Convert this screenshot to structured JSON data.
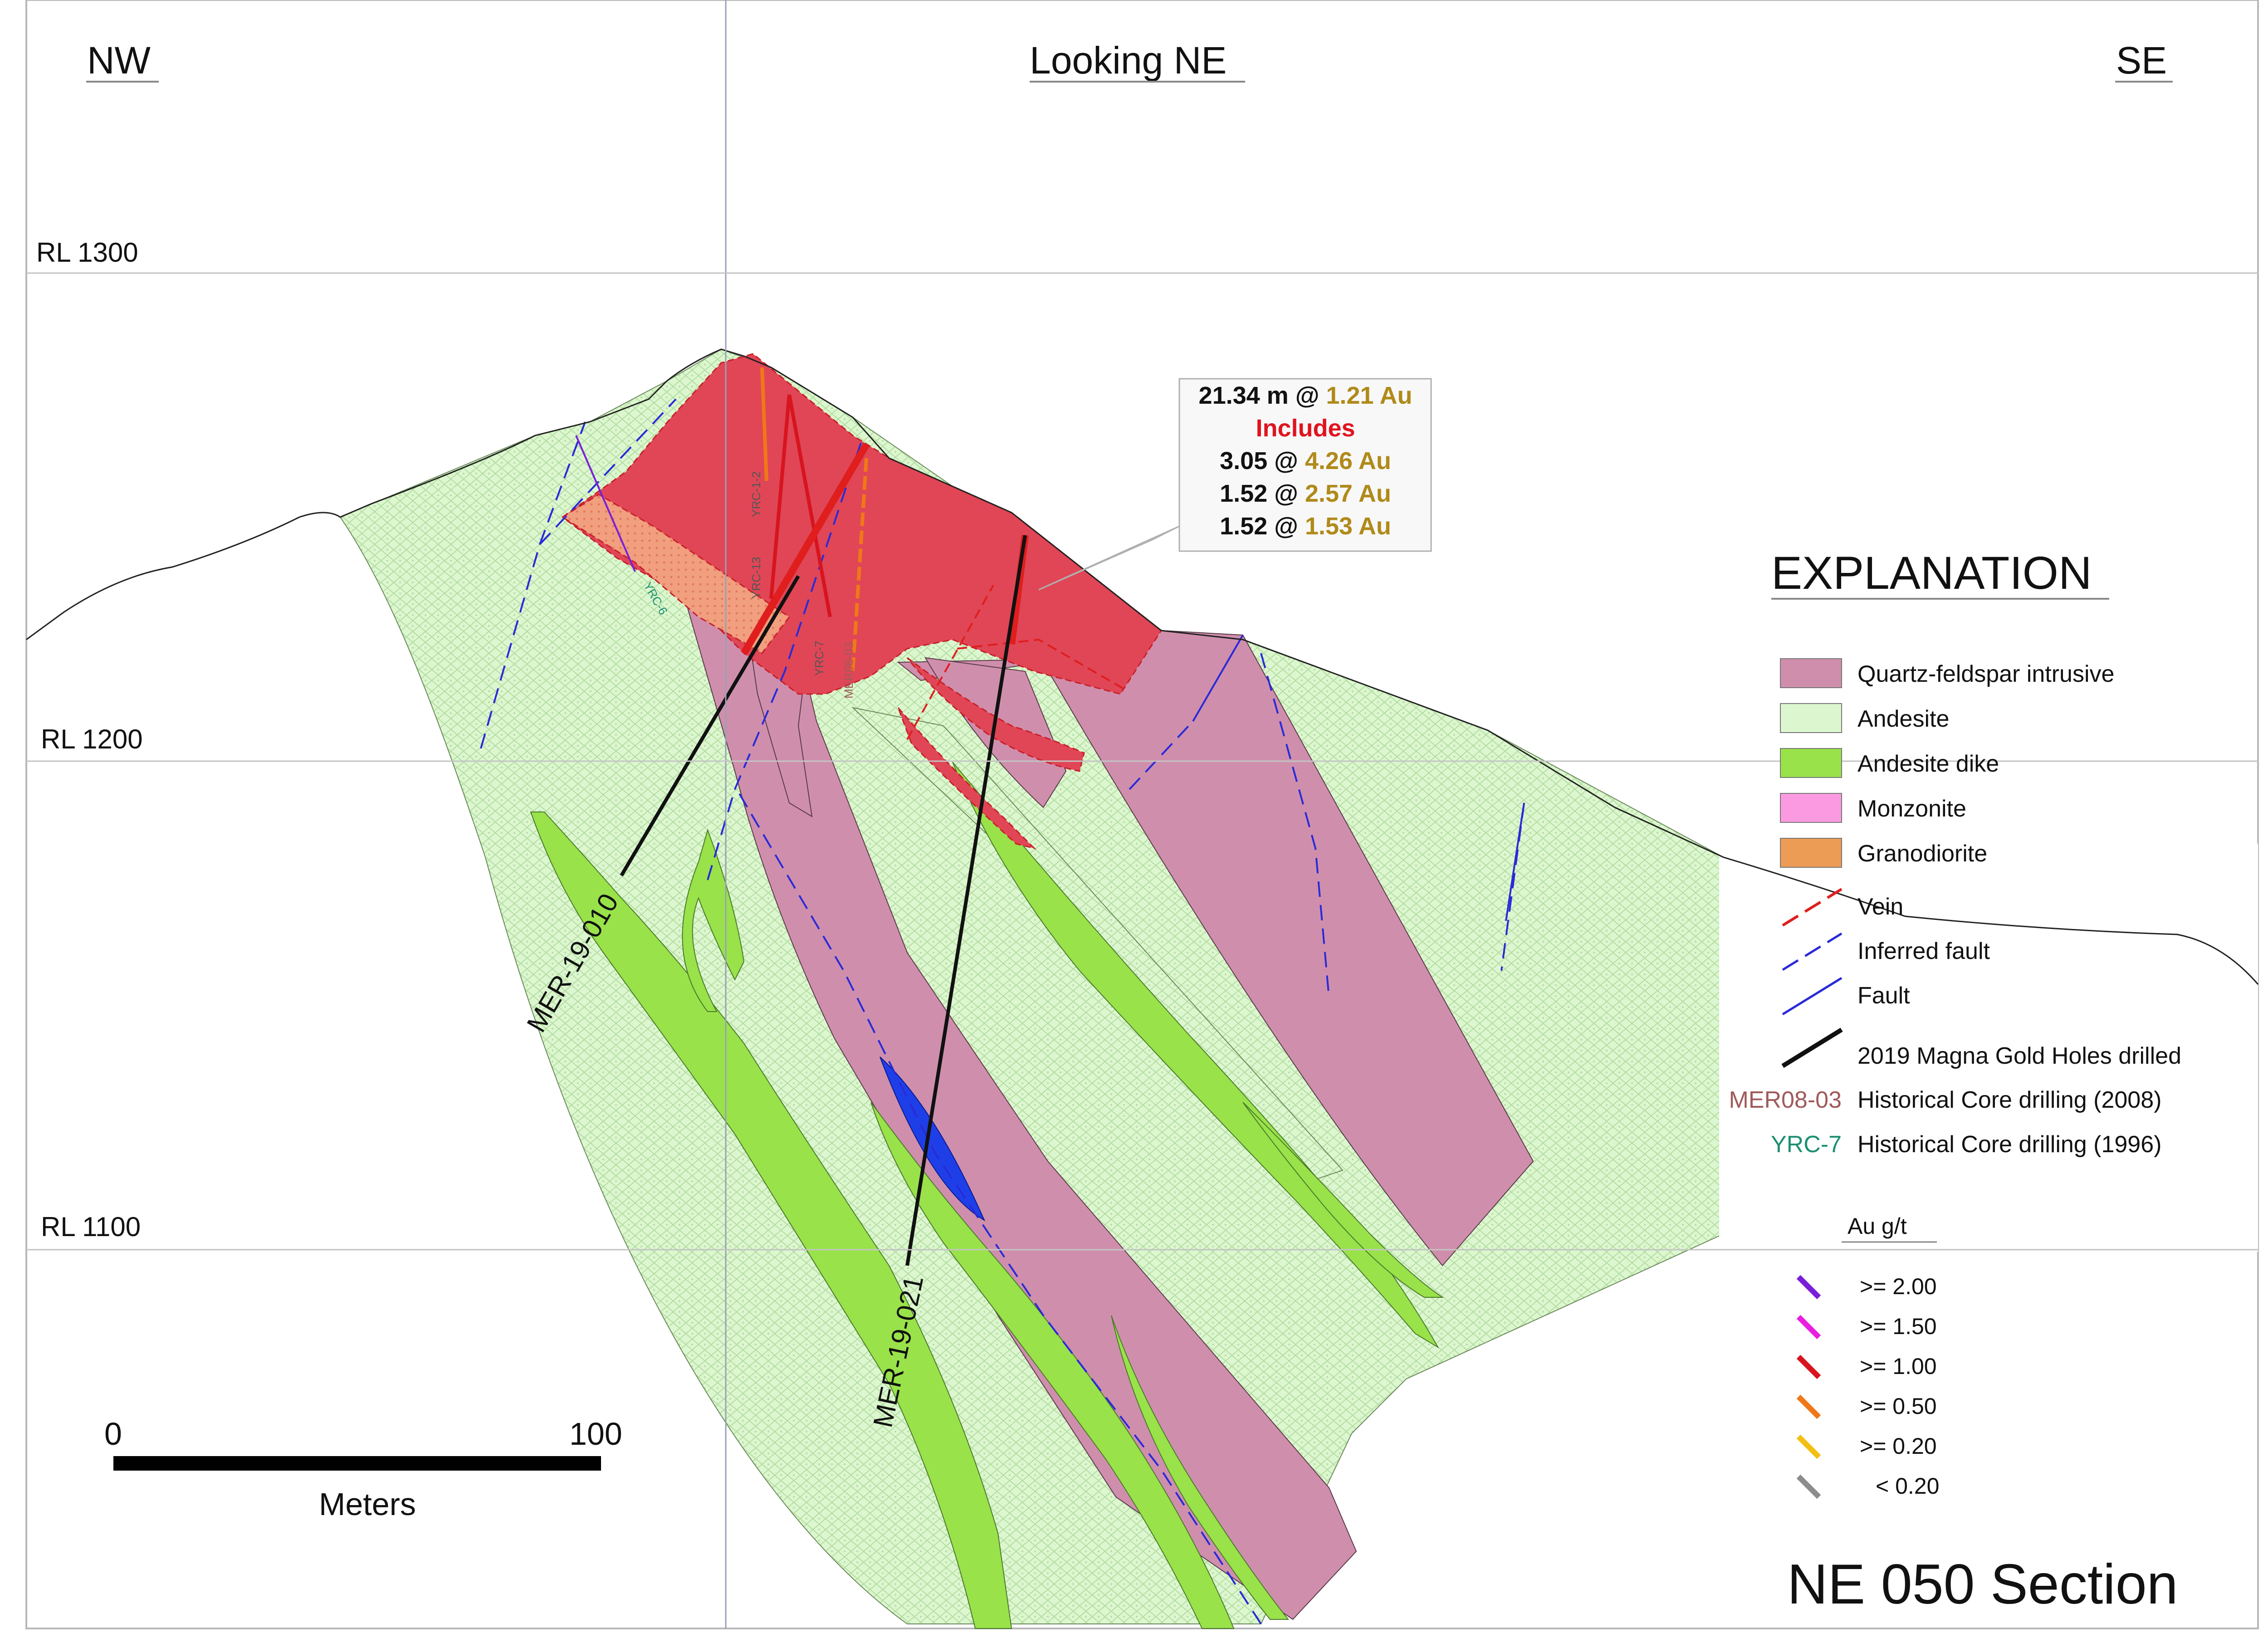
{
  "header": {
    "left": "NW",
    "center": "Looking NE",
    "right": "SE"
  },
  "elevations": [
    "RL 1300",
    "RL 1200",
    "RL 1100"
  ],
  "holes": {
    "mer19_010": "MER-19-010",
    "mer19_021": "MER-19-021",
    "yrc_1_2": "YRC-1-2",
    "yrc_13": "YRC-13",
    "yrc_7": "YRC-7",
    "mer08_03": "MER08-03",
    "yrc_6": "YRC-6"
  },
  "callout": {
    "line1_a": "21.34 m @ ",
    "line1_b": "1.21 Au",
    "line2": "Includes",
    "line3_a": "3.05 @ ",
    "line3_b": "4.26 Au",
    "line4_a": "1.52 @ ",
    "line4_b": "2.57 Au",
    "line5_a": "1.52 @ ",
    "line5_b": "1.53 Au"
  },
  "legend": {
    "title": "EXPLANATION",
    "items": [
      {
        "label": "Quartz-feldspar intrusive",
        "color": "#cf8fac"
      },
      {
        "label": "Andesite",
        "color": "#dcf7cf"
      },
      {
        "label": "Andesite dike",
        "color": "#99e24a"
      },
      {
        "label": "Monzonite",
        "color": "#fb9ae0"
      },
      {
        "label": "Granodiorite",
        "color": "#ed9c55"
      }
    ],
    "lines": [
      {
        "label": "Vein",
        "color": "#e01e1e",
        "style": "dashed"
      },
      {
        "label": "Inferred fault",
        "color": "#2a2ad8",
        "style": "dashed"
      },
      {
        "label": "Fault",
        "color": "#2a2ad8",
        "style": "solid"
      },
      {
        "label": "2019 Magna Gold Holes drilled",
        "color": "#000000",
        "style": "solid"
      }
    ],
    "historical": [
      {
        "code": "MER08-03",
        "label": "Historical Core drilling (2008)",
        "color": "#a05a5a"
      },
      {
        "code": "YRC-7",
        "label": "Historical Core drilling (1996)",
        "color": "#1d8f70"
      }
    ]
  },
  "grade": {
    "title": "Au g/t",
    "items": [
      {
        "label": ">= 2.00",
        "color": "#7a1fd8"
      },
      {
        "label": ">= 1.50",
        "color": "#e81ee0"
      },
      {
        "label": ">= 1.00",
        "color": "#d8141e"
      },
      {
        "label": ">= 0.50",
        "color": "#f07818"
      },
      {
        "label": ">= 0.20",
        "color": "#f2c012"
      },
      {
        "label": "< 0.20",
        "color": "#8c8c8c"
      }
    ]
  },
  "scale": {
    "zero": "0",
    "hundred": "100",
    "unit": "Meters"
  },
  "section_title": "NE 050 Section"
}
